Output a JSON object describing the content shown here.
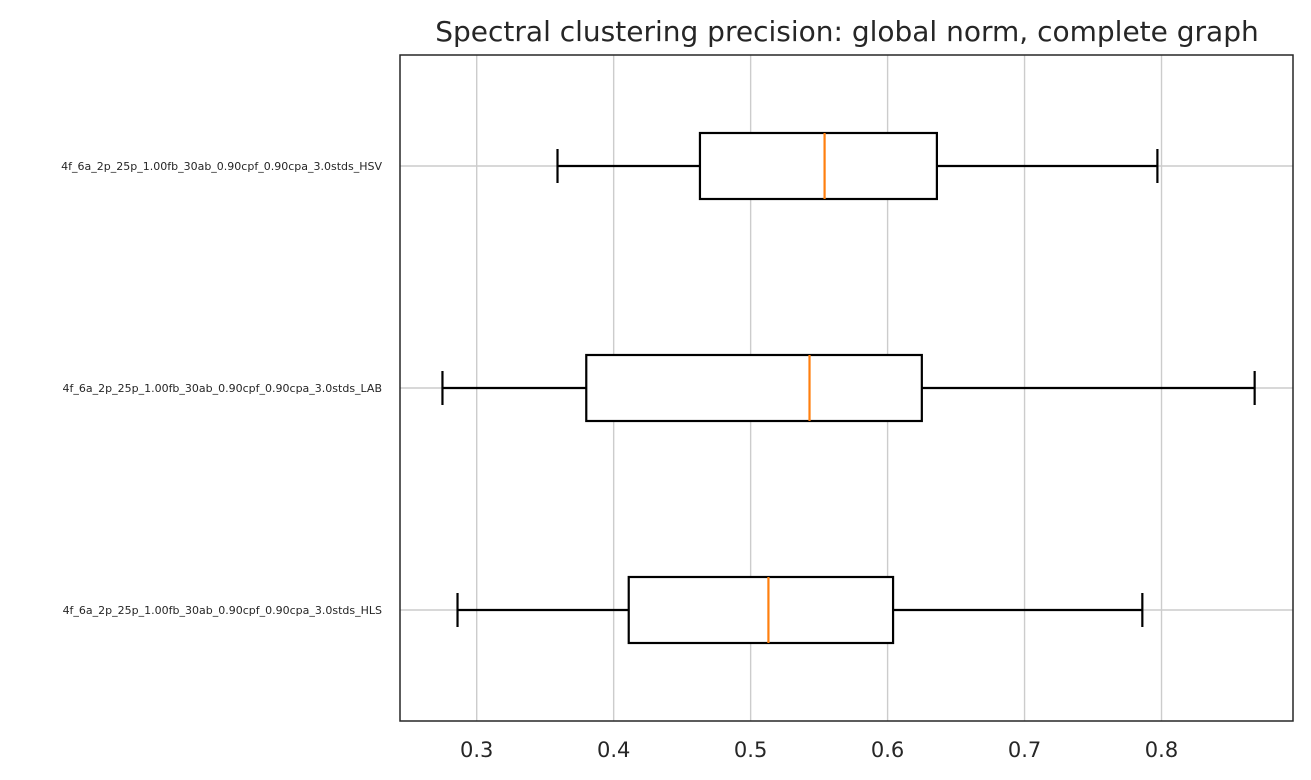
{
  "chart_data": {
    "type": "boxplot",
    "orientation": "horizontal",
    "title": "Spectral clustering precision: global norm, complete graph",
    "xlabel": "",
    "ylabel": "",
    "xlim": [
      0.244,
      0.896
    ],
    "xticks": [
      0.3,
      0.4,
      0.5,
      0.6,
      0.7,
      0.8
    ],
    "xtick_labels": [
      "0.3",
      "0.4",
      "0.5",
      "0.6",
      "0.7",
      "0.8"
    ],
    "grid": true,
    "categories": [
      "4f_6a_2p_25p_1.00fb_30ab_0.90cpf_0.90cpa_3.0stds_HSV",
      "4f_6a_2p_25p_1.00fb_30ab_0.90cpf_0.90cpa_3.0stds_LAB",
      "4f_6a_2p_25p_1.00fb_30ab_0.90cpf_0.90cpa_3.0stds_HLS"
    ],
    "boxes": [
      {
        "label": "4f_6a_2p_25p_1.00fb_30ab_0.90cpf_0.90cpa_3.0stds_HSV",
        "whislo": 0.359,
        "q1": 0.463,
        "med": 0.554,
        "q3": 0.636,
        "whishi": 0.797
      },
      {
        "label": "4f_6a_2p_25p_1.00fb_30ab_0.90cpf_0.90cpa_3.0stds_LAB",
        "whislo": 0.275,
        "q1": 0.38,
        "med": 0.543,
        "q3": 0.625,
        "whishi": 0.868
      },
      {
        "label": "4f_6a_2p_25p_1.00fb_30ab_0.90cpf_0.90cpa_3.0stds_HLS",
        "whislo": 0.286,
        "q1": 0.411,
        "med": 0.513,
        "q3": 0.604,
        "whishi": 0.786
      }
    ],
    "colors": {
      "box": "#000000",
      "median": "#ff7f0e",
      "grid": "#cccccc"
    }
  }
}
